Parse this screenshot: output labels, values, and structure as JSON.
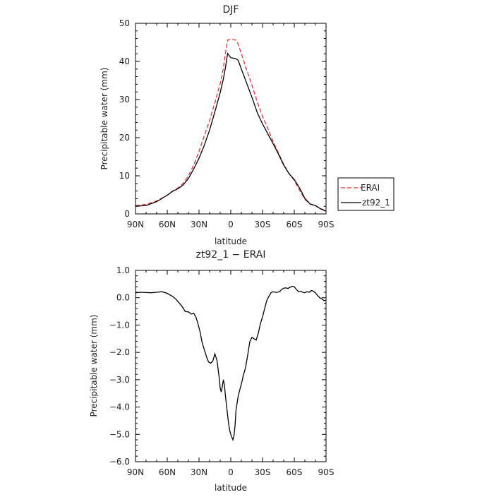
{
  "chart_data": [
    {
      "type": "line",
      "title": "DJF",
      "xlabel": "latitude",
      "ylabel": "Precipitable water (mm)",
      "xlim": [
        90,
        -90
      ],
      "ylim": [
        0,
        50
      ],
      "xticks": [
        90,
        60,
        30,
        0,
        -30,
        -60,
        -90
      ],
      "xtick_labels": [
        "90N",
        "60N",
        "30N",
        "0",
        "30S",
        "60S",
        "90S"
      ],
      "yticks": [
        0,
        10,
        20,
        30,
        40,
        50
      ],
      "ytick_labels": [
        "0",
        "10",
        "20",
        "30",
        "40",
        "50"
      ],
      "grid": false,
      "legend_position": "right",
      "series": [
        {
          "name": "ERAI",
          "color": "#e8312f",
          "dash": "dashed",
          "x": [
            90,
            80,
            70,
            60,
            55,
            50,
            45,
            40,
            35,
            30,
            25,
            20,
            15,
            10,
            7,
            5,
            3,
            0,
            -5,
            -7,
            -10,
            -15,
            -20,
            -25,
            -30,
            -35,
            -40,
            -45,
            -50,
            -55,
            -60,
            -65,
            -70,
            -75,
            -80,
            -85,
            -90
          ],
          "values": [
            2.2,
            2.5,
            3.4,
            4.9,
            6.0,
            6.8,
            8.0,
            10.0,
            12.8,
            16.4,
            20.5,
            24.5,
            29.2,
            34.2,
            38.2,
            42.3,
            45.6,
            45.9,
            45.6,
            44.5,
            42.0,
            37.8,
            33.8,
            29.4,
            25.6,
            22.4,
            19.0,
            16.0,
            13.0,
            10.6,
            8.8,
            6.2,
            3.8,
            2.6,
            2.1,
            1.4,
            0.8
          ]
        },
        {
          "name": "zt92_1",
          "color": "#000000",
          "dash": "solid",
          "x": [
            90,
            80,
            70,
            60,
            55,
            50,
            45,
            40,
            35,
            30,
            25,
            20,
            15,
            10,
            7,
            5,
            3,
            0,
            -5,
            -7,
            -10,
            -15,
            -20,
            -25,
            -30,
            -35,
            -40,
            -45,
            -50,
            -55,
            -60,
            -65,
            -70,
            -75,
            -80,
            -85,
            -90
          ],
          "values": [
            2.0,
            2.2,
            3.2,
            4.9,
            5.9,
            6.6,
            7.6,
            9.3,
            11.8,
            14.6,
            18.0,
            22.0,
            26.8,
            31.8,
            35.4,
            38.4,
            42.1,
            41.0,
            40.7,
            40.3,
            38.0,
            34.3,
            30.6,
            26.6,
            23.6,
            21.0,
            18.4,
            15.7,
            12.8,
            10.6,
            9.0,
            6.8,
            4.1,
            2.6,
            2.2,
            1.3,
            0.7
          ]
        }
      ]
    },
    {
      "type": "line",
      "title": "zt92_1 − ERAI",
      "xlabel": "latitude",
      "ylabel": "Precipitable water (mm)",
      "xlim": [
        90,
        -90
      ],
      "ylim": [
        -6,
        1
      ],
      "xticks": [
        90,
        60,
        30,
        0,
        -30,
        -60,
        -90
      ],
      "xtick_labels": [
        "90N",
        "60N",
        "30N",
        "0",
        "30S",
        "60S",
        "90S"
      ],
      "yticks": [
        1,
        0,
        -1,
        -2,
        -3,
        -4,
        -5,
        -6
      ],
      "ytick_labels": [
        "1.0",
        "0.0",
        "−1.0",
        "−2.0",
        "−3.0",
        "−4.0",
        "−5.0",
        "−6.0"
      ],
      "grid": false,
      "series": [
        {
          "color": "#000000",
          "dash": "solid",
          "x": [
            90,
            85,
            80,
            75,
            70,
            65,
            60,
            55,
            52,
            49,
            46,
            43,
            40,
            37,
            35,
            33,
            31,
            29,
            27,
            25,
            23,
            21,
            19,
            17,
            15,
            13,
            11,
            10,
            9,
            8,
            7,
            6,
            5,
            4,
            3,
            2,
            1,
            0,
            -1,
            -2,
            -3,
            -4,
            -5,
            -6,
            -7,
            -8,
            -9,
            -10,
            -11,
            -12,
            -13,
            -14,
            -16,
            -18,
            -20,
            -22,
            -24,
            -26,
            -28,
            -30,
            -32,
            -34,
            -36,
            -38,
            -40,
            -42,
            -44,
            -46,
            -48,
            -50,
            -52,
            -54,
            -56,
            -58,
            -60,
            -62,
            -64,
            -66,
            -68,
            -70,
            -72,
            -74,
            -76,
            -78,
            -80,
            -82,
            -84,
            -86,
            -88,
            -90
          ],
          "values": [
            0.18,
            0.2,
            0.19,
            0.18,
            0.2,
            0.22,
            0.16,
            0.05,
            -0.05,
            -0.18,
            -0.32,
            -0.5,
            -0.52,
            -0.6,
            -0.57,
            -0.7,
            -0.95,
            -1.25,
            -1.65,
            -1.9,
            -2.15,
            -2.35,
            -2.4,
            -2.32,
            -2.05,
            -2.3,
            -2.9,
            -3.3,
            -3.45,
            -3.25,
            -3.0,
            -3.2,
            -3.6,
            -3.95,
            -4.3,
            -4.62,
            -4.85,
            -5.0,
            -5.1,
            -5.2,
            -5.05,
            -4.7,
            -4.1,
            -3.85,
            -3.6,
            -3.45,
            -3.3,
            -3.15,
            -3.0,
            -2.8,
            -2.7,
            -2.55,
            -2.1,
            -1.6,
            -1.45,
            -1.5,
            -1.55,
            -1.3,
            -0.95,
            -0.7,
            -0.4,
            -0.1,
            0.05,
            0.18,
            0.22,
            0.2,
            0.2,
            0.22,
            0.3,
            0.35,
            0.36,
            0.34,
            0.38,
            0.42,
            0.4,
            0.3,
            0.22,
            0.24,
            0.2,
            0.18,
            0.22,
            0.2,
            0.26,
            0.24,
            0.18,
            0.08,
            0.0,
            -0.04,
            -0.1,
            -0.1
          ]
        }
      ]
    }
  ]
}
